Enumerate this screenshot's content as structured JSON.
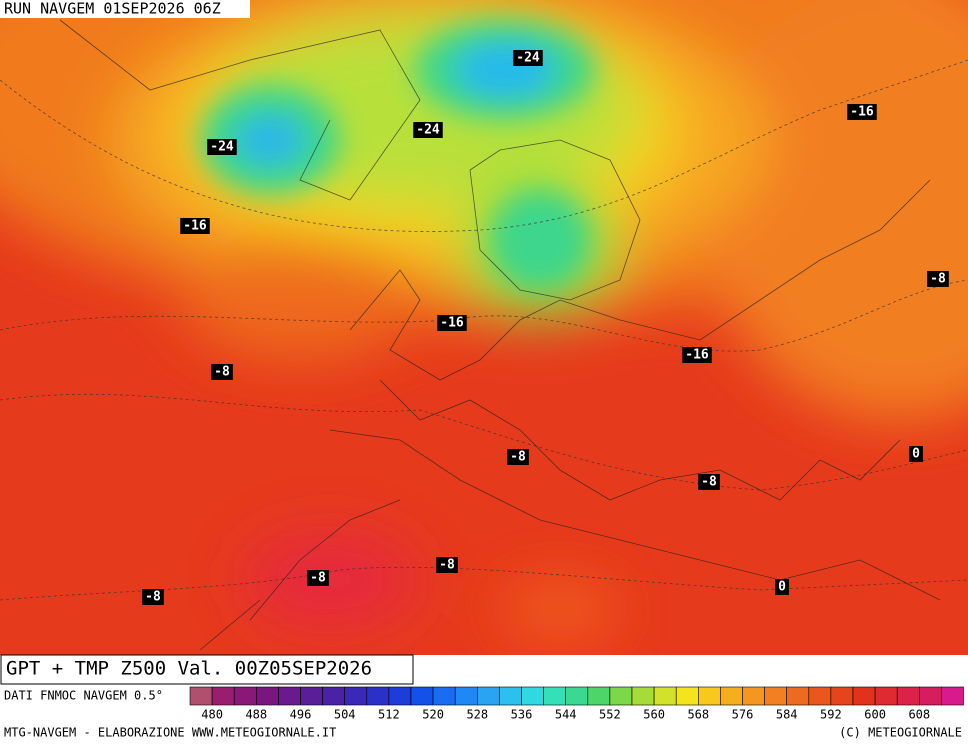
{
  "header": {
    "title": "RUN NAVGEM 01SEP2026 06Z"
  },
  "caption": "GPT + TMP Z500 Val. 00Z05SEP2026",
  "contour_labels": [
    "-24",
    "-24",
    "-24",
    "-16",
    "-16",
    "-8",
    "-16",
    "-16",
    "-8",
    "-8",
    "0",
    "-8",
    "-8",
    "-8",
    "-8",
    "0"
  ],
  "legend": {
    "source": "DATI FNMOC NAVGEM 0.5°",
    "ticks": [
      "480",
      "488",
      "496",
      "504",
      "512",
      "520",
      "528",
      "536",
      "544",
      "552",
      "560",
      "568",
      "576",
      "584",
      "592",
      "600",
      "608"
    ]
  },
  "footer": {
    "left": "MTG-NAVGEM - ELABORAZIONE WWW.METEOGIORNALE.IT",
    "right": "(C) METEOGIORNALE"
  }
}
